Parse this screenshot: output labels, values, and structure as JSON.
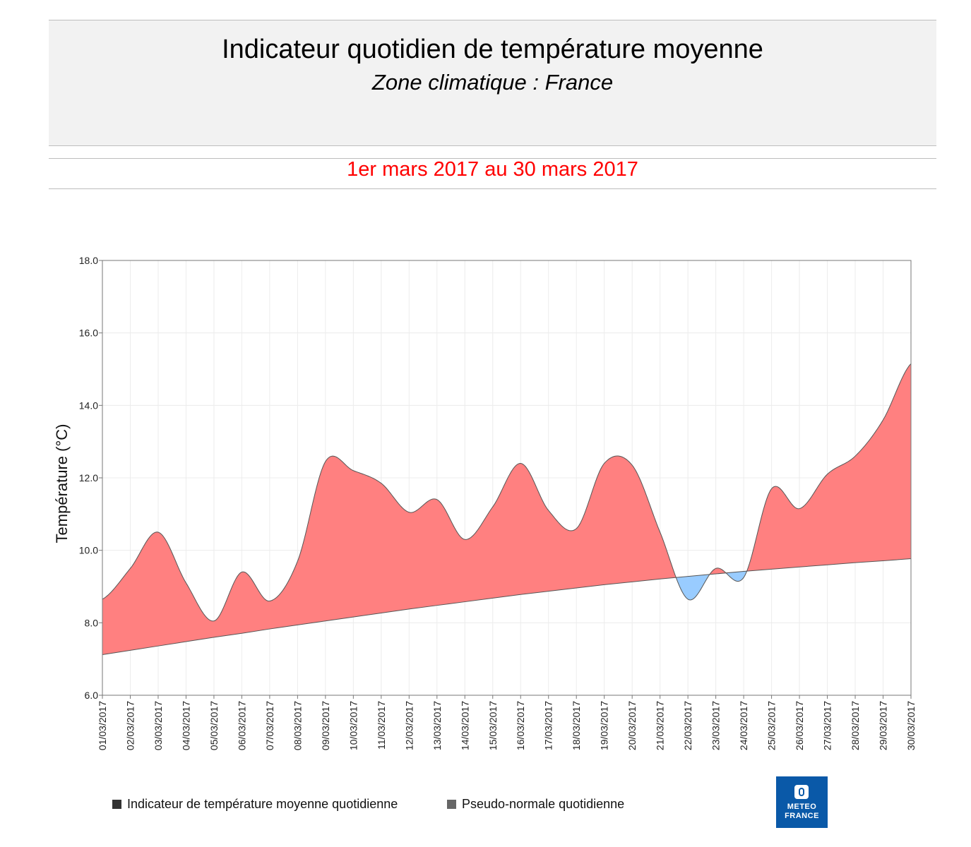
{
  "header": {
    "title": "Indicateur quotidien de température moyenne",
    "subtitle": "Zone climatique : France",
    "period": "1er mars 2017 au 30 mars 2017"
  },
  "colors": {
    "above": "#ff8080",
    "below": "#99ccff",
    "period_text": "#ff0000",
    "logo": "#0a59a8"
  },
  "legend": {
    "indicator_label": "Indicateur de température moyenne quotidienne",
    "normal_label": "Pseudo-normale quotidienne"
  },
  "logo": {
    "line1": "METEO",
    "line2": "FRANCE",
    "icon": "meteo-france-logo-icon"
  },
  "chart_data": {
    "type": "area",
    "ylabel": "Température (°C)",
    "xlabel": "",
    "ylim": [
      6.0,
      18.0
    ],
    "yticks": [
      "6.0",
      "8.0",
      "10.0",
      "12.0",
      "14.0",
      "16.0",
      "18.0"
    ],
    "grid": true,
    "legend_position": "bottom-left",
    "categories": [
      "01/03/2017",
      "02/03/2017",
      "03/03/2017",
      "04/03/2017",
      "05/03/2017",
      "06/03/2017",
      "07/03/2017",
      "08/03/2017",
      "09/03/2017",
      "10/03/2017",
      "11/03/2017",
      "12/03/2017",
      "13/03/2017",
      "14/03/2017",
      "15/03/2017",
      "16/03/2017",
      "17/03/2017",
      "18/03/2017",
      "19/03/2017",
      "20/03/2017",
      "21/03/2017",
      "22/03/2017",
      "23/03/2017",
      "24/03/2017",
      "25/03/2017",
      "26/03/2017",
      "27/03/2017",
      "28/03/2017",
      "29/03/2017",
      "30/03/2017"
    ],
    "series": [
      {
        "name": "Indicateur de température moyenne quotidienne",
        "values": [
          8.65,
          9.5,
          10.5,
          9.1,
          8.05,
          9.4,
          8.6,
          9.7,
          12.45,
          12.2,
          11.85,
          11.05,
          11.4,
          10.3,
          11.2,
          12.4,
          11.1,
          10.6,
          12.4,
          12.35,
          10.5,
          8.65,
          9.5,
          9.25,
          11.7,
          11.15,
          12.1,
          12.6,
          13.6,
          15.15
        ]
      },
      {
        "name": "Pseudo-normale quotidienne",
        "values": [
          7.12,
          7.24,
          7.36,
          7.48,
          7.6,
          7.71,
          7.83,
          7.94,
          8.05,
          8.16,
          8.27,
          8.38,
          8.48,
          8.58,
          8.68,
          8.78,
          8.87,
          8.96,
          9.05,
          9.13,
          9.21,
          9.28,
          9.35,
          9.42,
          9.48,
          9.54,
          9.6,
          9.66,
          9.71,
          9.77
        ]
      }
    ]
  }
}
